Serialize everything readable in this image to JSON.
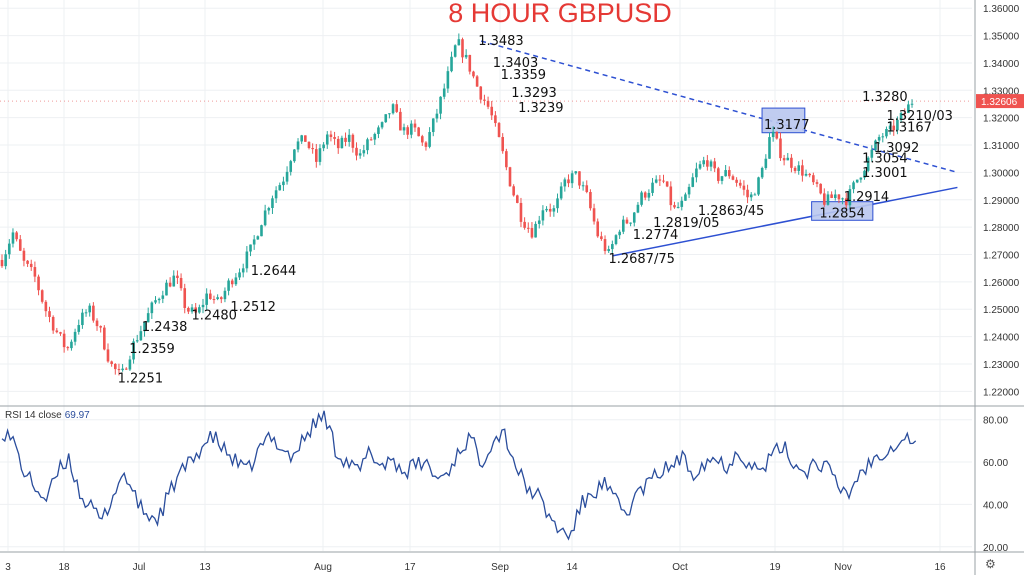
{
  "title": "8 HOUR GBPUSD",
  "colors": {
    "title": "#e53935",
    "bull": "#26a69a",
    "bear": "#ef5350",
    "trend": "#2d50d2",
    "rsi": "#2a4d9c",
    "box": "#b9c6ee",
    "price_tag": "#ef5350"
  },
  "price_tag": "1.32606",
  "rsi_panel": {
    "label": "RSI 14 close",
    "value": "69.97"
  },
  "settings_icon": "gear-icon",
  "chart_data": [
    {
      "type": "candlestick",
      "title": "8 HOUR GBPUSD",
      "ylim": [
        1.215,
        1.363
      ],
      "y_ticks": [
        "1.22000",
        "1.23000",
        "1.24000",
        "1.25000",
        "1.26000",
        "1.27000",
        "1.28000",
        "1.29000",
        "1.30000",
        "1.31000",
        "1.32000",
        "1.33000",
        "1.34000",
        "1.35000",
        "1.36000"
      ],
      "x_ticks": [
        "3",
        "18",
        "Jul",
        "13",
        "Aug",
        "17",
        "Sep",
        "14",
        "Oct",
        "19",
        "Nov",
        "16"
      ],
      "anchors": [
        1.268,
        1.278,
        1.267,
        1.262,
        1.25,
        1.242,
        1.235,
        1.245,
        1.25,
        1.243,
        1.23,
        1.225,
        1.236,
        1.244,
        1.252,
        1.258,
        1.262,
        1.25,
        1.248,
        1.256,
        1.252,
        1.26,
        1.265,
        1.272,
        1.283,
        1.292,
        1.298,
        1.31,
        1.312,
        1.304,
        1.314,
        1.309,
        1.313,
        1.306,
        1.312,
        1.316,
        1.324,
        1.315,
        1.316,
        1.309,
        1.32,
        1.333,
        1.348,
        1.34,
        1.33,
        1.323,
        1.31,
        1.295,
        1.283,
        1.278,
        1.288,
        1.286,
        1.297,
        1.299,
        1.291,
        1.277,
        1.27,
        1.28,
        1.283,
        1.291,
        1.295,
        1.297,
        1.286,
        1.289,
        1.3,
        1.305,
        1.298,
        1.3,
        1.296,
        1.29,
        1.298,
        1.315,
        1.306,
        1.303,
        1.3,
        1.295,
        1.289,
        1.292,
        1.29,
        1.298,
        1.305,
        1.313,
        1.315,
        1.32,
        1.326
      ],
      "candle_count": 250,
      "seed": 7,
      "lines": [
        {
          "name": "",
          "style": "dashed",
          "points": [
            [
              0.495,
              1.348
            ],
            [
              0.985,
              1.3
            ]
          ]
        },
        {
          "name": "",
          "style": "solid",
          "points": [
            [
              0.63,
              1.2695
            ],
            [
              0.985,
              1.2945
            ]
          ]
        }
      ],
      "boxes": [
        {
          "x": [
            0.784,
            0.828
          ],
          "y": [
            1.3145,
            1.3235
          ]
        },
        {
          "x": [
            0.835,
            0.898
          ],
          "y": [
            1.2825,
            1.2893
          ]
        }
      ],
      "annotations": [
        {
          "text": "1.3483",
          "x": 0.492,
          "y": 1.3483
        },
        {
          "text": "1.3403",
          "x": 0.507,
          "y": 1.3403
        },
        {
          "text": "1.3359",
          "x": 0.515,
          "y": 1.3359
        },
        {
          "text": "1.3293",
          "x": 0.526,
          "y": 1.3293
        },
        {
          "text": "1.3239",
          "x": 0.533,
          "y": 1.3239
        },
        {
          "text": "1.3280",
          "x": 0.887,
          "y": 1.328
        },
        {
          "text": "1.3177",
          "x": 0.786,
          "y": 1.3177
        },
        {
          "text": "1.3210/03",
          "x": 0.912,
          "y": 1.321
        },
        {
          "text": "1.3167",
          "x": 0.912,
          "y": 1.3167
        },
        {
          "text": "1.3092",
          "x": 0.899,
          "y": 1.3092
        },
        {
          "text": "1.3054",
          "x": 0.887,
          "y": 1.3054
        },
        {
          "text": "1.3001",
          "x": 0.887,
          "y": 1.3001
        },
        {
          "text": "1.2914",
          "x": 0.868,
          "y": 1.2914
        },
        {
          "text": "1.2854",
          "x": 0.843,
          "y": 1.2854
        },
        {
          "text": "1.2863/45",
          "x": 0.718,
          "y": 1.2863
        },
        {
          "text": "1.2819/05",
          "x": 0.672,
          "y": 1.2819
        },
        {
          "text": "1.2774",
          "x": 0.651,
          "y": 1.2774
        },
        {
          "text": "1.2687/75",
          "x": 0.626,
          "y": 1.2687
        },
        {
          "text": "1.2644",
          "x": 0.258,
          "y": 1.2644
        },
        {
          "text": "1.2512",
          "x": 0.237,
          "y": 1.2512
        },
        {
          "text": "1.2480",
          "x": 0.197,
          "y": 1.248
        },
        {
          "text": "1.2438",
          "x": 0.146,
          "y": 1.2438
        },
        {
          "text": "1.2359",
          "x": 0.133,
          "y": 1.2359
        },
        {
          "text": "1.2251",
          "x": 0.121,
          "y": 1.2251
        }
      ]
    },
    {
      "type": "line",
      "name": "RSI 14 close",
      "ylim": [
        18,
        86
      ],
      "y_ticks": [
        "20.00",
        "40.00",
        "60.00",
        "80.00"
      ],
      "anchors": [
        75,
        70,
        55,
        48,
        42,
        55,
        62,
        45,
        38,
        32,
        45,
        55,
        42,
        35,
        33,
        45,
        55,
        60,
        68,
        72,
        65,
        60,
        55,
        65,
        72,
        68,
        62,
        70,
        78,
        82,
        65,
        60,
        55,
        65,
        58,
        62,
        55,
        58,
        60,
        52,
        55,
        65,
        72,
        60,
        70,
        75,
        60,
        48,
        45,
        35,
        28,
        25,
        40,
        45,
        50,
        42,
        35,
        45,
        50,
        55,
        58,
        62,
        55,
        60,
        62,
        58,
        65,
        60,
        55,
        62,
        68,
        60,
        55,
        60,
        58,
        48,
        45,
        55,
        60,
        65,
        68,
        72,
        70
      ],
      "values_last": 69.97
    }
  ]
}
